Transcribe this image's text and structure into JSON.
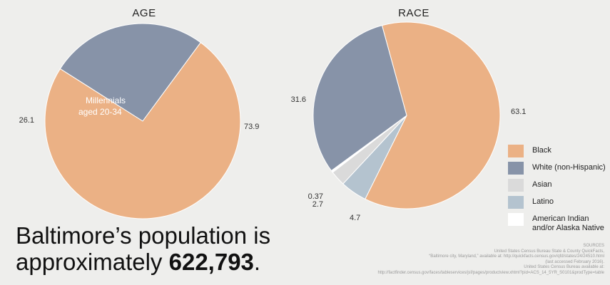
{
  "charts": {
    "age": {
      "title": "AGE",
      "inner_label_line1": "Millennials",
      "inner_label_line2": "aged 20-34"
    },
    "race": {
      "title": "RACE"
    }
  },
  "chart_data": [
    {
      "type": "pie",
      "title": "AGE",
      "slices": [
        {
          "label": "Millennials aged 20-34",
          "value": 26.1,
          "color": "#8793a8"
        },
        {
          "label": "",
          "value": 73.9,
          "color": "#ebb185"
        }
      ]
    },
    {
      "type": "pie",
      "title": "RACE",
      "slices": [
        {
          "label": "Black",
          "value": 63.1,
          "color": "#ebb185"
        },
        {
          "label": "Latino",
          "value": 4.7,
          "color": "#b4c3cf"
        },
        {
          "label": "Asian",
          "value": 2.7,
          "color": "#dadada"
        },
        {
          "label": "American Indian and/or Alaska Native",
          "value": 0.37,
          "color": "#ffffff"
        },
        {
          "label": "White (non-Hispanic)",
          "value": 31.6,
          "color": "#8793a8"
        }
      ]
    }
  ],
  "legend": [
    {
      "label": "Black",
      "color": "#ebb185"
    },
    {
      "label": "White (non-Hispanic)",
      "color": "#8793a8"
    },
    {
      "label": "Asian",
      "color": "#dadada"
    },
    {
      "label": "Latino",
      "color": "#b4c3cf"
    },
    {
      "label": "American Indian and/or Alaska Native",
      "color": "#ffffff"
    }
  ],
  "headline": {
    "line1": "Baltimore’s population is",
    "line2_prefix": "approximately ",
    "line2_number": "622,793",
    "line2_suffix": "."
  },
  "sources": {
    "heading": "SOURCES",
    "line1": "United States Census Bureau State & County QuickFacts,",
    "line2": "“Baltimore city, Maryland,” available at: http://quickfacts.census.gov/qfd/states/24/24510.html",
    "line3": "(last accessed February 2016).",
    "line4": "United States Census Bureau available at:",
    "line5": "http://factfinder.census.gov/faces/tableservices/jsf/pages/productview.xhtml?pid=ACS_14_5YR_S0101&prodType=table"
  }
}
